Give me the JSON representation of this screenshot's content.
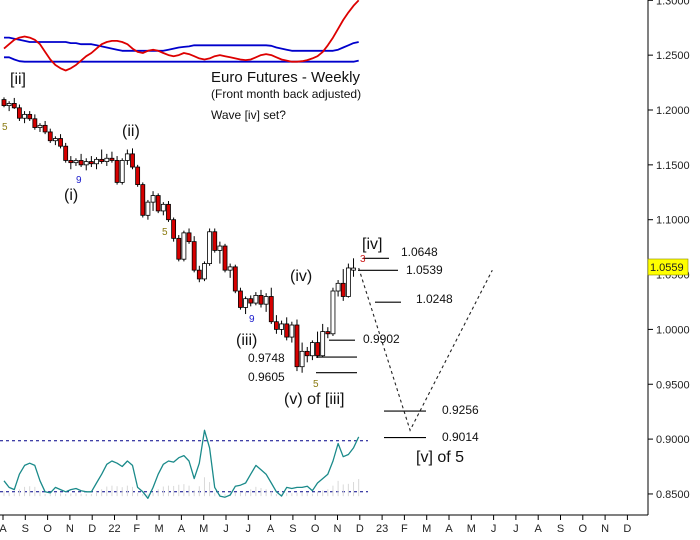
{
  "title": "Euro Futures - Weekly",
  "subtitle": "(Front month back adjusted)",
  "note": "Wave [iv] set?",
  "colors": {
    "up": "#ffffff",
    "down": "#d60000",
    "wick": "#000000",
    "band": "#0000cc",
    "osc_top": "#dd0000",
    "lower_osc": "#1a8a8a",
    "dashed_ref": "#000088",
    "price_badge_bg": "#ffff00"
  },
  "chart_data": {
    "type": "candlestick",
    "y_axis": {
      "ticks": [
        "1.3000",
        "1.2500",
        "1.2000",
        "1.1500",
        "1.1000",
        "1.0500",
        "1.0000",
        "0.9500",
        "0.9000",
        "0.8500"
      ],
      "range": [
        0.835,
        1.305
      ]
    },
    "x_axis": {
      "labels": [
        "A",
        "S",
        "O",
        "N",
        "D",
        "22",
        "F",
        "M",
        "A",
        "M",
        "J",
        "J",
        "A",
        "S",
        "O",
        "N",
        "D",
        "23",
        "F",
        "M",
        "A",
        "M",
        "J",
        "J",
        "A",
        "S",
        "O",
        "N",
        "D"
      ]
    },
    "current_price": "1.0559",
    "candles": [
      [
        1.2095,
        1.2115,
        1.2025,
        1.204
      ],
      [
        1.204,
        1.208,
        1.199,
        1.206
      ],
      [
        1.206,
        1.211,
        1.201,
        1.202
      ],
      [
        1.202,
        1.205,
        1.19,
        1.1925
      ],
      [
        1.1925,
        1.199,
        1.188,
        1.196
      ],
      [
        1.196,
        1.199,
        1.19,
        1.192
      ],
      [
        1.192,
        1.196,
        1.182,
        1.184
      ],
      [
        1.184,
        1.188,
        1.18,
        1.186
      ],
      [
        1.186,
        1.19,
        1.178,
        1.18
      ],
      [
        1.18,
        1.183,
        1.17,
        1.172
      ],
      [
        1.172,
        1.176,
        1.168,
        1.174
      ],
      [
        1.174,
        1.178,
        1.165,
        1.167
      ],
      [
        1.167,
        1.17,
        1.152,
        1.154
      ],
      [
        1.154,
        1.158,
        1.146,
        1.152
      ],
      [
        1.152,
        1.156,
        1.149,
        1.154
      ],
      [
        1.154,
        1.16,
        1.148,
        1.15
      ],
      [
        1.15,
        1.156,
        1.145,
        1.153
      ],
      [
        1.153,
        1.158,
        1.148,
        1.151
      ],
      [
        1.151,
        1.157,
        1.146,
        1.155
      ],
      [
        1.155,
        1.164,
        1.151,
        1.153
      ],
      [
        1.153,
        1.16,
        1.149,
        1.156
      ],
      [
        1.156,
        1.162,
        1.152,
        1.154
      ],
      [
        1.154,
        1.158,
        1.132,
        1.134
      ],
      [
        1.134,
        1.156,
        1.132,
        1.154
      ],
      [
        1.154,
        1.164,
        1.15,
        1.16
      ],
      [
        1.16,
        1.165,
        1.146,
        1.148
      ],
      [
        1.148,
        1.15,
        1.13,
        1.132
      ],
      [
        1.132,
        1.134,
        1.102,
        1.104
      ],
      [
        1.104,
        1.118,
        1.1,
        1.116
      ],
      [
        1.116,
        1.126,
        1.108,
        1.122
      ],
      [
        1.122,
        1.124,
        1.106,
        1.108
      ],
      [
        1.108,
        1.116,
        1.104,
        1.114
      ],
      [
        1.114,
        1.117,
        1.098,
        1.1
      ],
      [
        1.1,
        1.102,
        1.08,
        1.083
      ],
      [
        1.083,
        1.086,
        1.062,
        1.064
      ],
      [
        1.064,
        1.09,
        1.062,
        1.088
      ],
      [
        1.088,
        1.092,
        1.078,
        1.08
      ],
      [
        1.08,
        1.085,
        1.052,
        1.054
      ],
      [
        1.054,
        1.058,
        1.043,
        1.046
      ],
      [
        1.046,
        1.062,
        1.044,
        1.06
      ],
      [
        1.06,
        1.092,
        1.058,
        1.089
      ],
      [
        1.089,
        1.092,
        1.07,
        1.072
      ],
      [
        1.072,
        1.08,
        1.06,
        1.076
      ],
      [
        1.076,
        1.078,
        1.052,
        1.054
      ],
      [
        1.054,
        1.06,
        1.047,
        1.057
      ],
      [
        1.057,
        1.059,
        1.033,
        1.035
      ],
      [
        1.035,
        1.038,
        1.018,
        1.02
      ],
      [
        1.02,
        1.03,
        1.014,
        1.028
      ],
      [
        1.028,
        1.031,
        1.021,
        1.024
      ],
      [
        1.024,
        1.034,
        1.022,
        1.031
      ],
      [
        1.031,
        1.036,
        1.02,
        1.023
      ],
      [
        1.023,
        1.033,
        1.016,
        1.03
      ],
      [
        1.03,
        1.038,
        1.005,
        1.007
      ],
      [
        1.007,
        1.013,
        0.996,
        1.0
      ],
      [
        1.0,
        1.008,
        0.995,
        1.005
      ],
      [
        1.005,
        1.011,
        0.99,
        0.993
      ],
      [
        0.993,
        1.007,
        0.988,
        1.004
      ],
      [
        1.004,
        1.009,
        0.962,
        0.966
      ],
      [
        0.966,
        0.988,
        0.9605,
        0.98
      ],
      [
        0.98,
        0.984,
        0.97,
        0.976
      ],
      [
        0.976,
        0.99,
        0.972,
        0.988
      ],
      [
        0.988,
        0.998,
        0.974,
        0.976
      ],
      [
        0.976,
        1.005,
        0.975,
        0.998
      ],
      [
        0.998,
        1.002,
        0.992,
        0.996
      ],
      [
        0.996,
        1.038,
        0.994,
        1.035
      ],
      [
        1.035,
        1.045,
        1.03,
        1.042
      ],
      [
        1.042,
        1.055,
        1.026,
        1.03
      ],
      [
        1.03,
        1.06,
        1.029,
        1.056
      ],
      [
        1.054,
        1.0648,
        1.048,
        1.0559
      ]
    ],
    "wave_labels": [
      "[ii]",
      "(i)",
      "(ii)",
      "(iii)",
      "(iv)",
      "(v) of [iii]",
      "[iv]",
      "[v] of 5"
    ],
    "counts": [
      {
        "text": "5",
        "color": "#8a7a10"
      },
      {
        "text": "9",
        "color": "#1a1acc"
      },
      {
        "text": "5",
        "color": "#8a7a10"
      },
      {
        "text": "9",
        "color": "#1a1acc"
      },
      {
        "text": "5",
        "color": "#8a7a10"
      },
      {
        "text": "3",
        "color": "#cc1a1a"
      }
    ],
    "levels": [
      {
        "label": "1.0648",
        "value": 1.0648
      },
      {
        "label": "1.0539",
        "value": 1.0539
      },
      {
        "label": "1.0248",
        "value": 1.0248
      },
      {
        "label": "0.9902",
        "value": 0.9902
      },
      {
        "label": "0.9748",
        "value": 0.9748
      },
      {
        "label": "0.9605",
        "value": 0.9605
      },
      {
        "label": "0.9256",
        "value": 0.9256
      },
      {
        "label": "0.9014",
        "value": 0.9014
      }
    ],
    "projection": [
      {
        "week": 69,
        "price": 1.0559
      },
      {
        "week": 79,
        "price": 0.908
      },
      {
        "week": 95,
        "price": 1.054
      }
    ],
    "upper_band_top": [
      1.266,
      1.266,
      1.265,
      1.264,
      1.263,
      1.262,
      1.262,
      1.262,
      1.262,
      1.262,
      1.262,
      1.262,
      1.262,
      1.261,
      1.261,
      1.26,
      1.26,
      1.26,
      1.259,
      1.258,
      1.257,
      1.256,
      1.255,
      1.254,
      1.254,
      1.254,
      1.254,
      1.254,
      1.254,
      1.254,
      1.254,
      1.254,
      1.255,
      1.256,
      1.257,
      1.2575,
      1.258,
      1.259,
      1.259,
      1.259,
      1.259,
      1.259,
      1.259,
      1.259,
      1.259,
      1.259,
      1.259,
      1.259,
      1.259,
      1.259,
      1.259,
      1.259,
      1.2585,
      1.257,
      1.256,
      1.255,
      1.254,
      1.254,
      1.254,
      1.254,
      1.254,
      1.254,
      1.254,
      1.254,
      1.254,
      1.255,
      1.257,
      1.259,
      1.261,
      1.262
    ],
    "upper_band_bottom": [
      1.248,
      1.248,
      1.246,
      1.2445,
      1.244,
      1.244,
      1.244,
      1.244,
      1.244,
      1.244,
      1.244,
      1.244,
      1.244,
      1.244,
      1.244,
      1.244,
      1.244,
      1.244,
      1.244,
      1.244,
      1.244,
      1.244,
      1.244,
      1.244,
      1.244,
      1.244,
      1.244,
      1.244,
      1.244,
      1.244,
      1.244,
      1.244,
      1.244,
      1.244,
      1.244,
      1.244,
      1.244,
      1.244,
      1.244,
      1.244,
      1.244,
      1.244,
      1.244,
      1.244,
      1.244,
      1.244,
      1.244,
      1.244,
      1.244,
      1.244,
      1.244,
      1.244,
      1.244,
      1.244,
      1.244,
      1.244,
      1.244,
      1.244,
      1.244,
      1.244,
      1.244,
      1.244,
      1.244,
      1.244,
      1.244,
      1.244,
      1.244,
      1.244,
      1.244,
      1.245
    ],
    "top_oscillator": [
      1.256,
      1.26,
      1.264,
      1.266,
      1.267,
      1.266,
      1.264,
      1.26,
      1.253,
      1.246,
      1.241,
      1.238,
      1.236,
      1.238,
      1.241,
      1.245,
      1.249,
      1.252,
      1.256,
      1.26,
      1.262,
      1.263,
      1.263,
      1.262,
      1.26,
      1.256,
      1.253,
      1.252,
      1.254,
      1.255,
      1.254,
      1.252,
      1.25,
      1.249,
      1.25,
      1.252,
      1.251,
      1.249,
      1.247,
      1.246,
      1.247,
      1.249,
      1.25,
      1.249,
      1.248,
      1.247,
      1.246,
      1.2455,
      1.246,
      1.248,
      1.25,
      1.251,
      1.25,
      1.248,
      1.246,
      1.245,
      1.244,
      1.244,
      1.2445,
      1.2455,
      1.247,
      1.249,
      1.253,
      1.259,
      1.266,
      1.274,
      1.282,
      1.289,
      1.295,
      1.3
    ],
    "lower_oscillator": [
      0.862,
      0.856,
      0.854,
      0.868,
      0.876,
      0.878,
      0.876,
      0.862,
      0.852,
      0.851,
      0.856,
      0.854,
      0.852,
      0.854,
      0.855,
      0.853,
      0.852,
      0.852,
      0.86,
      0.868,
      0.877,
      0.88,
      0.878,
      0.875,
      0.88,
      0.876,
      0.856,
      0.852,
      0.846,
      0.856,
      0.868,
      0.877,
      0.88,
      0.879,
      0.883,
      0.885,
      0.88,
      0.864,
      0.878,
      0.908,
      0.892,
      0.856,
      0.848,
      0.847,
      0.849,
      0.857,
      0.858,
      0.86,
      0.868,
      0.876,
      0.872,
      0.868,
      0.86,
      0.852,
      0.848,
      0.856,
      0.855,
      0.856,
      0.856,
      0.857,
      0.853,
      0.86,
      0.864,
      0.868,
      0.88,
      0.896,
      0.884,
      0.886,
      0.892,
      0.902
    ],
    "lower_ref_levels": [
      0.8985,
      0.852
    ]
  }
}
